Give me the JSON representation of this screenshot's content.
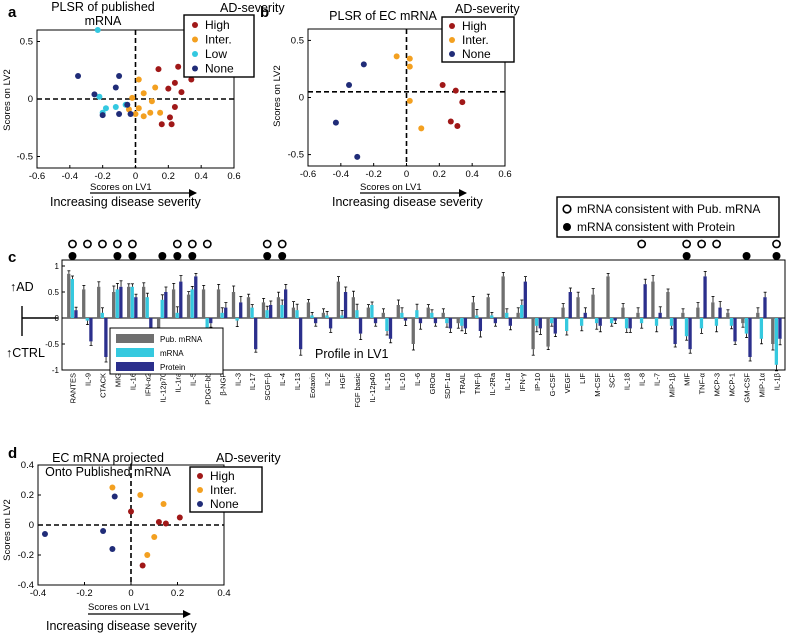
{
  "colors": {
    "High": "#a01818",
    "Inter.": "#f3a020",
    "Low": "#33c8e0",
    "None": "#202c78",
    "pub": "#6f6f6f",
    "mrna": "#35c9df",
    "protein": "#2b2f8c"
  },
  "labels": {
    "x_axis_note": "Scores on LV1",
    "severity_arrow": "Increasing disease severity",
    "up_ad": "↑AD",
    "down_ctrl": "↑CTRL",
    "consistency_pub": "mRNA consistent with Pub. mRNA",
    "consistency_protein": "mRNA consistent with Protein"
  },
  "chart_data": [
    {
      "panel": "a",
      "type": "scatter",
      "title": "PLSR of published mRNA",
      "title_lines": [
        "PLSR of published",
        "mRNA"
      ],
      "xlabel": "Scores on LV1",
      "ylabel": "Scores on LV2",
      "xlim": [
        -0.6,
        0.6
      ],
      "ylim": [
        -0.6,
        0.6
      ],
      "xticks": [
        "-0.6",
        "-0.4",
        "-0.2",
        "0",
        "0.2",
        "0.4",
        "0.6"
      ],
      "yticks": [
        "0.5",
        "0",
        "-0.5"
      ],
      "legend_title": "AD-severity",
      "legend": [
        "High",
        "Inter.",
        "Low",
        "None"
      ],
      "series": [
        {
          "name": "High",
          "points": [
            [
              0.36,
              0.39
            ],
            [
              0.26,
              0.28
            ],
            [
              0.14,
              0.26
            ],
            [
              0.34,
              0.17
            ],
            [
              0.24,
              0.14
            ],
            [
              0.2,
              0.09
            ],
            [
              0.28,
              0.06
            ],
            [
              0.24,
              -0.07
            ],
            [
              0.21,
              -0.16
            ],
            [
              0.16,
              -0.22
            ],
            [
              0.22,
              -0.22
            ]
          ]
        },
        {
          "name": "Inter.",
          "points": [
            [
              0.02,
              0.17
            ],
            [
              0.12,
              0.1
            ],
            [
              0.05,
              0.05
            ],
            [
              -0.02,
              0.01
            ],
            [
              0.1,
              -0.02
            ],
            [
              0.02,
              -0.08
            ],
            [
              -0.04,
              -0.09
            ],
            [
              0.0,
              -0.13
            ],
            [
              0.09,
              -0.12
            ],
            [
              0.15,
              -0.12
            ],
            [
              0.05,
              -0.15
            ]
          ]
        },
        {
          "name": "Low",
          "points": [
            [
              -0.23,
              0.6
            ],
            [
              -0.22,
              0.02
            ],
            [
              -0.2,
              -0.12
            ],
            [
              -0.12,
              -0.07
            ],
            [
              -0.06,
              -0.05
            ],
            [
              -0.18,
              -0.08
            ]
          ]
        },
        {
          "name": "None",
          "points": [
            [
              -0.35,
              0.2
            ],
            [
              -0.1,
              0.2
            ],
            [
              -0.25,
              0.04
            ],
            [
              -0.12,
              0.1
            ],
            [
              -0.05,
              -0.05
            ],
            [
              -0.1,
              -0.13
            ],
            [
              -0.2,
              -0.14
            ],
            [
              -0.03,
              -0.13
            ]
          ]
        }
      ]
    },
    {
      "panel": "b",
      "type": "scatter",
      "title": "PLSR of EC mRNA",
      "xlabel": "Scores on LV1",
      "ylabel": "Scores on LV2",
      "xlim": [
        -0.6,
        0.6
      ],
      "ylim": [
        -0.6,
        0.6
      ],
      "xticks": [
        "-0.6",
        "-0.4",
        "-0.2",
        "0",
        "0.2",
        "0.4",
        "0.6"
      ],
      "yticks": [
        "0.5",
        "0",
        "-0.5"
      ],
      "legend_title": "AD-severity",
      "legend": [
        "High",
        "Inter.",
        "None"
      ],
      "series": [
        {
          "name": "High",
          "points": [
            [
              0.22,
              0.11
            ],
            [
              0.3,
              0.06
            ],
            [
              0.34,
              -0.04
            ],
            [
              0.27,
              -0.21
            ],
            [
              0.31,
              -0.25
            ]
          ]
        },
        {
          "name": "Inter.",
          "points": [
            [
              -0.06,
              0.36
            ],
            [
              0.02,
              0.34
            ],
            [
              0.02,
              0.27
            ],
            [
              0.02,
              -0.03
            ],
            [
              0.09,
              -0.27
            ]
          ]
        },
        {
          "name": "None",
          "points": [
            [
              -0.26,
              0.29
            ],
            [
              -0.35,
              0.11
            ],
            [
              -0.43,
              -0.22
            ],
            [
              -0.3,
              -0.52
            ]
          ]
        }
      ]
    },
    {
      "panel": "c",
      "type": "bar",
      "title": "Profile in LV1",
      "ylim": [
        -1,
        1
      ],
      "ytick_labels": [
        "1",
        "0.5",
        "0",
        "-0.5",
        "-1"
      ],
      "legend": [
        "Pub. mRNA",
        "mRNA",
        "Protein"
      ],
      "categories": [
        "RANTES",
        "IL-9",
        "CTACK",
        "MIG",
        "IL-16",
        "IFN-α2",
        "IL-12p70",
        "IL-1ra",
        "IL-5",
        "PDGF-bb",
        "β-NGF",
        "IL-3",
        "IL-17",
        "SCGF-β",
        "IL-4",
        "IL-13",
        "Eotaxin",
        "IL-2",
        "HGF",
        "FGF basic",
        "IL-12p40",
        "IL-15",
        "IL-10",
        "IL-6",
        "GROα",
        "SDF-1α",
        "TRAIL",
        "TNF-β",
        "IL-2Ra",
        "IL-1α",
        "IFN-γ",
        "IP-10",
        "G-CSF",
        "VEGF",
        "LIF",
        "M-CSF",
        "SCF",
        "IL-18",
        "IL-8",
        "IL-7",
        "MIP-1β",
        "MIF",
        "TNF-α",
        "MCP-3",
        "MCP-1",
        "GM-CSF",
        "MIP-1α",
        "IL-1β"
      ],
      "series": [
        {
          "name": "Pub. mRNA",
          "values": [
            0.85,
            0.55,
            0.6,
            0.5,
            0.6,
            0.6,
            -0.2,
            0.55,
            0.45,
            0.55,
            0.55,
            0.5,
            0.4,
            0.3,
            0.4,
            0.2,
            0.3,
            0.1,
            0.7,
            0.4,
            0.2,
            0.1,
            0.25,
            -0.5,
            0.2,
            0.1,
            -0.1,
            0.3,
            0.4,
            0.8,
            0.1,
            -0.6,
            -0.55,
            0.2,
            0.4,
            0.45,
            0.8,
            0.2,
            0.1,
            0.7,
            0.5,
            0.1,
            0.2,
            0.3,
            0.1,
            -0.1,
            0.1,
            -0.5
          ]
        },
        {
          "name": "mRNA",
          "values": [
            0.75,
            -0.05,
            0.1,
            0.55,
            0.6,
            0.4,
            0.35,
            0.1,
            0.55,
            -0.35,
            0.1,
            -0.05,
            0.2,
            0.15,
            0.25,
            0.15,
            0.05,
            0.05,
            0.05,
            0.15,
            0.25,
            -0.25,
            0.1,
            0.15,
            0.1,
            -0.1,
            -0.15,
            0.05,
            0.05,
            0.1,
            0.25,
            -0.15,
            -0.1,
            -0.25,
            -0.15,
            -0.1,
            -0.1,
            -0.2,
            -0.1,
            -0.15,
            -0.15,
            -0.35,
            -0.2,
            -0.15,
            -0.15,
            -0.3,
            -0.4,
            -0.9
          ]
        },
        {
          "name": "Protein",
          "values": [
            0.15,
            -0.45,
            -0.75,
            0.6,
            0.4,
            -0.4,
            0.5,
            0.7,
            0.8,
            -0.1,
            0.2,
            0.3,
            -0.6,
            0.25,
            0.55,
            -0.6,
            -0.1,
            -0.2,
            0.5,
            -0.3,
            -0.1,
            -0.4,
            -0.05,
            -0.1,
            -0.1,
            -0.2,
            -0.2,
            -0.25,
            -0.1,
            -0.15,
            0.7,
            -0.2,
            -0.3,
            0.5,
            0.1,
            -0.15,
            -0.05,
            -0.2,
            0.65,
            0.1,
            -0.5,
            -0.6,
            0.8,
            0.2,
            -0.45,
            -0.75,
            0.4,
            -0.4
          ]
        }
      ],
      "open_markers": [
        "RANTES",
        "IL-9",
        "CTACK",
        "MIG",
        "IL-16",
        "IL-1ra",
        "IL-5",
        "PDGF-bb",
        "SCGF-β",
        "IL-4",
        "IL-8",
        "MIF",
        "TNF-α",
        "MCP-3",
        "IL-1β"
      ],
      "filled_markers": [
        "RANTES",
        "MIG",
        "IL-16",
        "IL-12p70",
        "IL-1ra",
        "IL-5",
        "SCGF-β",
        "IL-4",
        "MIF",
        "GM-CSF",
        "IL-1β"
      ]
    },
    {
      "panel": "d",
      "type": "scatter",
      "title": "EC mRNA projected Onto Published mRNA",
      "title_lines": [
        "EC mRNA projected",
        "Onto Published mRNA"
      ],
      "xlabel": "Scores on LV1",
      "ylabel": "Scores on LV2",
      "xlim": [
        -0.4,
        0.4
      ],
      "ylim": [
        -0.4,
        0.4
      ],
      "xticks": [
        "-0.4",
        "-0.2",
        "0",
        "0.2",
        "0.4"
      ],
      "yticks": [
        "0.4",
        "0.2",
        "0",
        "-0.2",
        "-0.4"
      ],
      "legend_title": "AD-severity",
      "legend": [
        "High",
        "Inter.",
        "None"
      ],
      "series": [
        {
          "name": "High",
          "points": [
            [
              0.0,
              0.09
            ],
            [
              0.21,
              0.05
            ],
            [
              0.12,
              0.02
            ],
            [
              0.15,
              0.01
            ],
            [
              0.05,
              -0.27
            ]
          ]
        },
        {
          "name": "Inter.",
          "points": [
            [
              -0.08,
              0.25
            ],
            [
              0.04,
              0.2
            ],
            [
              0.14,
              0.14
            ],
            [
              0.1,
              -0.08
            ],
            [
              0.07,
              -0.2
            ]
          ]
        },
        {
          "name": "None",
          "points": [
            [
              -0.07,
              0.19
            ],
            [
              -0.37,
              -0.06
            ],
            [
              -0.12,
              -0.04
            ],
            [
              -0.08,
              -0.16
            ]
          ]
        }
      ]
    }
  ]
}
